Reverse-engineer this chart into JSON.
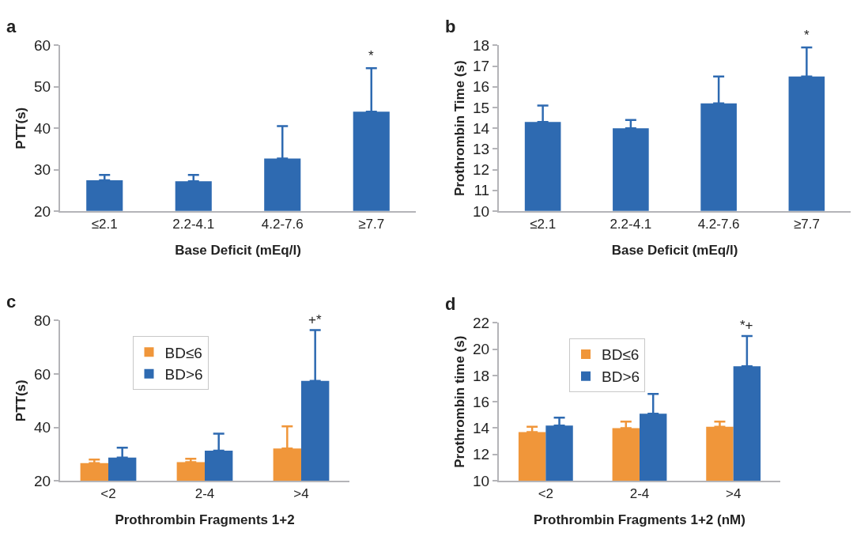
{
  "chart_data": [
    {
      "type": "bar",
      "title": "a",
      "xlabel": "Base Deficit (mEq/l)",
      "ylabel": "PTT(s)",
      "categories": [
        "≤2.1",
        "2.2-4.1",
        "4.2-7.6",
        "≥7.7"
      ],
      "ylim": [
        20,
        60
      ],
      "yticks": [
        20,
        30,
        40,
        50,
        60
      ],
      "grid": false,
      "legend": false,
      "series": [
        {
          "color": "#2e6ab1",
          "values": [
            27.4,
            27.2,
            32.7,
            44.0
          ],
          "errors": [
            [
              27.4,
              28.7
            ],
            [
              27.2,
              28.7
            ],
            [
              32.7,
              40.5
            ],
            [
              44.0,
              54.5
            ]
          ]
        }
      ],
      "annotations": [
        {
          "text": "*",
          "x": "≥7.7",
          "y": 54.5
        }
      ]
    },
    {
      "type": "bar",
      "title": "b",
      "xlabel": "Base Deficit (mEq/l)",
      "ylabel": "Prothrombin Time (s)",
      "categories": [
        "≤2.1",
        "2.2-4.1",
        "4.2-7.6",
        "≥7.7"
      ],
      "ylim": [
        10,
        18
      ],
      "yticks": [
        10,
        11,
        12,
        13,
        14,
        15,
        16,
        17,
        18
      ],
      "grid": false,
      "legend": false,
      "series": [
        {
          "color": "#2e6ab1",
          "values": [
            14.3,
            14.0,
            15.2,
            16.5
          ],
          "errors": [
            [
              14.3,
              15.1
            ],
            [
              14.0,
              14.4
            ],
            [
              15.2,
              16.5
            ],
            [
              16.5,
              17.9
            ]
          ]
        }
      ],
      "annotations": [
        {
          "text": "*",
          "x": "≥7.7",
          "y": 17.9
        }
      ]
    },
    {
      "type": "bar",
      "title": "c",
      "xlabel": "Prothrombin Fragments 1+2",
      "ylabel": "PTT(s)",
      "categories": [
        "<2",
        "2-4",
        ">4"
      ],
      "ylim": [
        20,
        80
      ],
      "yticks": [
        20,
        40,
        60,
        80
      ],
      "grid": false,
      "legend": "top left",
      "series": [
        {
          "name": "BD≤6",
          "color": "#f0963a",
          "values": [
            26.6,
            27.0,
            32.1
          ],
          "errors": [
            [
              26.6,
              27.9
            ],
            [
              27.0,
              28.2
            ],
            [
              32.1,
              40.4
            ]
          ]
        },
        {
          "name": "BD>6",
          "color": "#2e6ab1",
          "values": [
            28.7,
            31.3,
            57.4
          ],
          "errors": [
            [
              28.7,
              32.4
            ],
            [
              31.3,
              37.6
            ],
            [
              57.4,
              76.4
            ]
          ]
        }
      ],
      "annotations": [
        "+*"
      ]
    },
    {
      "type": "bar",
      "title": "d",
      "xlabel": "Prothrombin Fragments 1+2 (nM)",
      "ylabel": "Prothrombin time (s)",
      "categories": [
        "<2",
        "2-4",
        ">4"
      ],
      "ylim": [
        10,
        22
      ],
      "yticks": [
        10,
        12,
        14,
        16,
        18,
        20,
        22
      ],
      "grid": false,
      "legend": "top left",
      "series": [
        {
          "name": "BD≤6",
          "color": "#f0963a",
          "values": [
            13.7,
            14.0,
            14.1
          ],
          "errors": [
            [
              13.7,
              14.1
            ],
            [
              14.0,
              14.5
            ],
            [
              14.1,
              14.5
            ]
          ]
        },
        {
          "name": "BD>6",
          "color": "#2e6ab1",
          "values": [
            14.2,
            15.1,
            18.7
          ],
          "errors": [
            [
              14.2,
              14.8
            ],
            [
              15.1,
              16.6
            ],
            [
              18.7,
              21.0
            ]
          ]
        }
      ],
      "annotations": [
        "*+"
      ]
    }
  ]
}
